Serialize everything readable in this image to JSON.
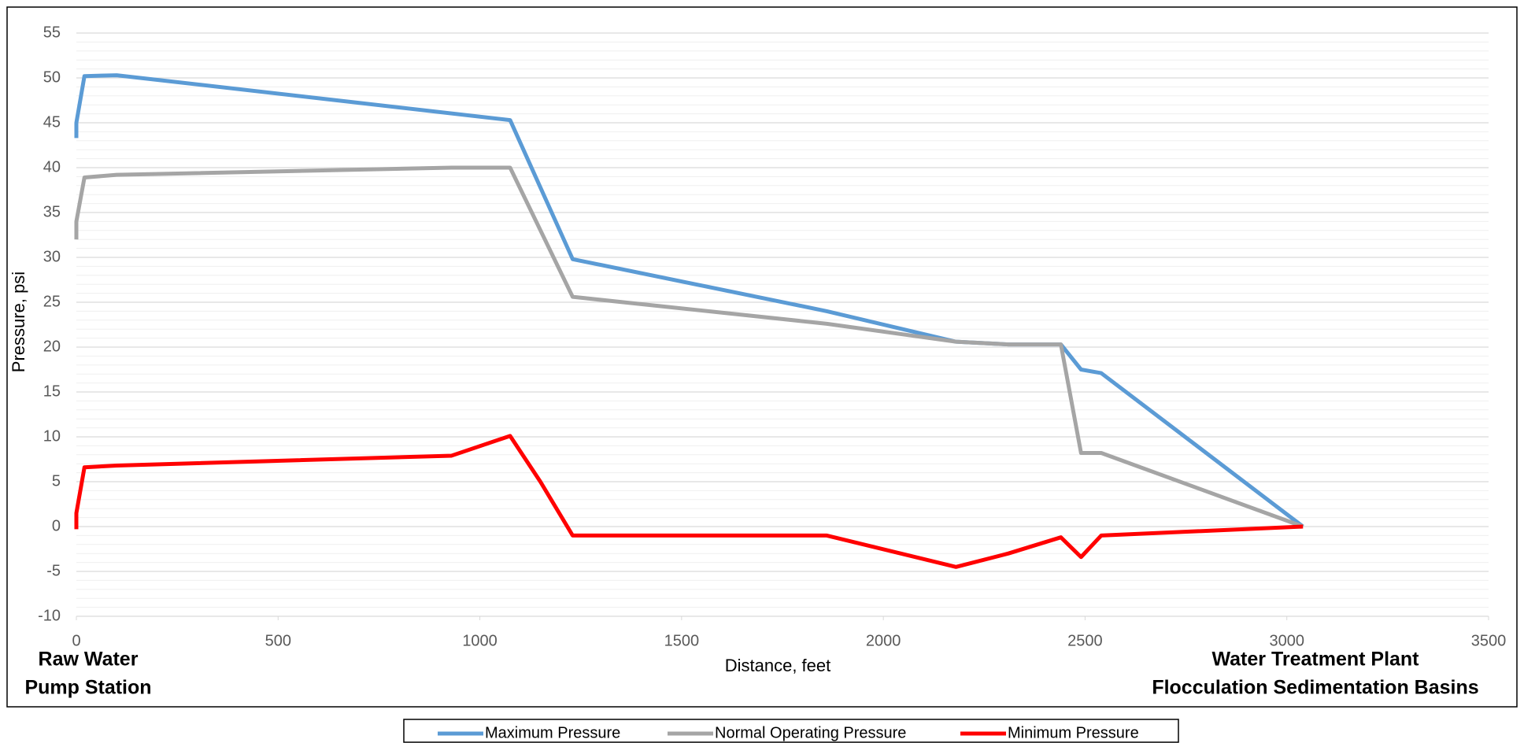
{
  "chart_data": {
    "type": "line",
    "x_label": "Distance, feet",
    "y_label": "Pressure, psi",
    "annotations": [
      "Raw Water",
      "Pump Station",
      "Water Treatment Plant",
      "Flocculation Sedimentation Basins"
    ],
    "xlim": [
      0,
      3500
    ],
    "xticks": [
      0,
      500,
      1000,
      1500,
      2000,
      2500,
      3000,
      3500
    ],
    "ylim": [
      -10,
      55
    ],
    "yticks": [
      -10,
      -5,
      0,
      5,
      10,
      15,
      20,
      25,
      30,
      35,
      40,
      45,
      50,
      55
    ],
    "grid": true,
    "legend": "bottom",
    "series": [
      {
        "name": "Maximum Pressure",
        "color": "#5b9bd5",
        "x": [
          0,
          0,
          20,
          100,
          1075,
          1230,
          1860,
          2180,
          2310,
          2440,
          2490,
          2540,
          3040
        ],
        "values": [
          43.3,
          45,
          50.2,
          50.3,
          45.3,
          29.8,
          24,
          20.6,
          20.3,
          20.3,
          17.5,
          17.1,
          0
        ]
      },
      {
        "name": "Normal Operating Pressure",
        "color": "#a5a5a5",
        "x": [
          0,
          0,
          20,
          100,
          930,
          1075,
          1230,
          1860,
          2180,
          2310,
          2440,
          2490,
          2540,
          3040
        ],
        "values": [
          32,
          34,
          38.9,
          39.2,
          40,
          40,
          25.6,
          22.6,
          20.6,
          20.3,
          20.3,
          8.2,
          8.2,
          0
        ]
      },
      {
        "name": "Minimum Pressure",
        "color": "#ff0000",
        "x": [
          0,
          0,
          20,
          100,
          930,
          1075,
          1150,
          1230,
          1860,
          2180,
          2310,
          2440,
          2490,
          2540,
          3040
        ],
        "values": [
          -0.3,
          1.5,
          6.6,
          6.8,
          7.9,
          10.1,
          5,
          -1,
          -1,
          -4.5,
          -3,
          -1.2,
          -3.4,
          -1,
          0
        ]
      }
    ]
  }
}
